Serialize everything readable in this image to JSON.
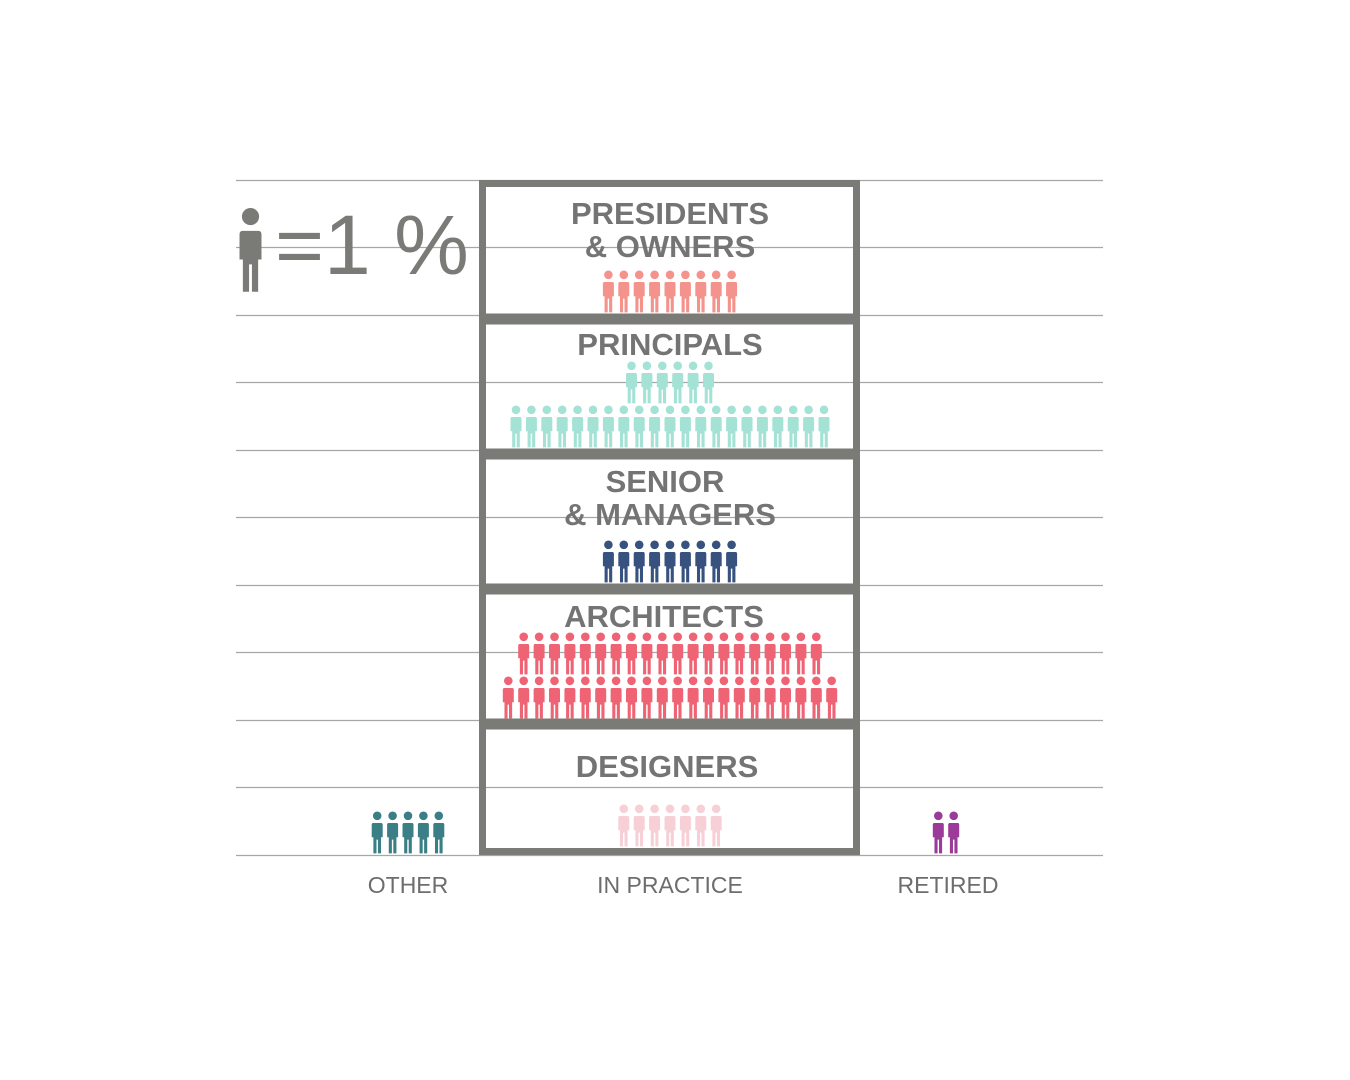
{
  "legend": {
    "text": "=1 %",
    "icon": "person-icon",
    "unit_percent": 1,
    "icon_color": "#7a7a76"
  },
  "chart_data": {
    "type": "pictograph",
    "unit": "1 person icon = 1%",
    "categories": [
      "OTHER",
      "IN PRACTICE",
      "RETIRED"
    ],
    "in_practice": [
      {
        "label_lines": [
          "PRESIDENTS",
          "& OWNERS"
        ],
        "value": 9,
        "color": "#f4928c"
      },
      {
        "label_lines": [
          "PRINCIPALS"
        ],
        "value": 27,
        "color": "#a4e2d6"
      },
      {
        "label_lines": [
          "SENIOR",
          "& MANAGERS"
        ],
        "value": 9,
        "color": "#37527f"
      },
      {
        "label_lines": [
          "ARCHITECTS"
        ],
        "value": 42,
        "color": "#ee6474"
      },
      {
        "label_lines": [
          "DESIGNERS"
        ],
        "value": 7,
        "color": "#f7d0d7"
      }
    ],
    "other": {
      "label": "OTHER",
      "value": 5,
      "color": "#3b7f86"
    },
    "retired": {
      "label": "RETIRED",
      "value": 2,
      "color": "#9b3a98"
    },
    "gridlines": true
  }
}
